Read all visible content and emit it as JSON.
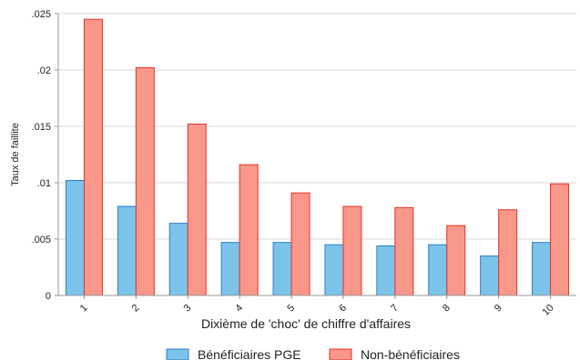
{
  "chart_data": {
    "type": "bar",
    "title": "",
    "xlabel": "Dixième de 'choc' de chiffre d'affaires",
    "ylabel": "Taux de faillite",
    "ylim": [
      0,
      0.025
    ],
    "yticks": [
      0,
      0.005,
      0.01,
      0.015,
      0.02,
      0.025
    ],
    "ytick_labels": [
      "0",
      ".005",
      ".01",
      ".015",
      ".02",
      ".025"
    ],
    "categories": [
      "1",
      "2",
      "3",
      "4",
      "5",
      "6",
      "7",
      "8",
      "9",
      "10"
    ],
    "grid": true,
    "legend_position": "bottom",
    "series": [
      {
        "name": "Bénéficiaires PGE",
        "color": "#7cc3ea",
        "edge": "#2b7fc0",
        "values": [
          0.0102,
          0.0079,
          0.0064,
          0.0047,
          0.0047,
          0.0045,
          0.0044,
          0.0045,
          0.0035,
          0.0047
        ]
      },
      {
        "name": "Non-bénéficiaires",
        "color": "#f9978a",
        "edge": "#e2342a",
        "values": [
          0.0245,
          0.0202,
          0.0152,
          0.0116,
          0.0091,
          0.0079,
          0.0078,
          0.0062,
          0.0076,
          0.0099
        ]
      }
    ]
  }
}
